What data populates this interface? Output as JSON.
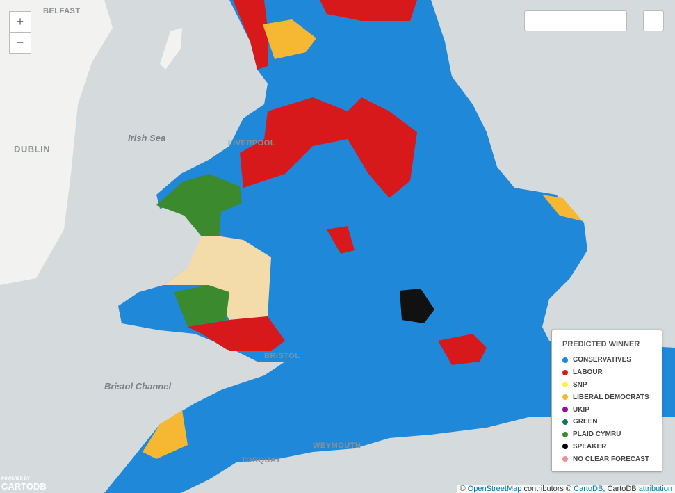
{
  "map": {
    "controls": {
      "zoom_in": "+",
      "zoom_out": "−"
    },
    "places": [
      "BELFAST",
      "DUBLIN",
      "Irish Sea",
      "LIVERPOOL",
      "Bristol Channel",
      "TORQUAY",
      "WEYMOUTH",
      "BRISTOL"
    ],
    "legend": {
      "title": "PREDICTED WINNER",
      "entries": [
        {
          "name": "CONSERVATIVES",
          "color": "#1f88d9"
        },
        {
          "name": "LABOUR",
          "color": "#d7191c"
        },
        {
          "name": "SNP",
          "color": "#fff23a"
        },
        {
          "name": "LIBERAL DEMOCRATS",
          "color": "#f6b833"
        },
        {
          "name": "UKIP",
          "color": "#8e1297"
        },
        {
          "name": "GREEN",
          "color": "#0f7a55"
        },
        {
          "name": "PLAID CYMRU",
          "color": "#3c8a2e"
        },
        {
          "name": "SPEAKER",
          "color": "#000000"
        },
        {
          "name": "NO CLEAR FORECAST",
          "color": "#ef8f8f"
        }
      ]
    },
    "logo": {
      "powered": "POWERED BY",
      "name": "CARTODB"
    },
    "attribution": [
      "©",
      "OpenStreetMap",
      "contributors ©",
      "CartoDB",
      ", CartoDB",
      "attribution"
    ]
  }
}
